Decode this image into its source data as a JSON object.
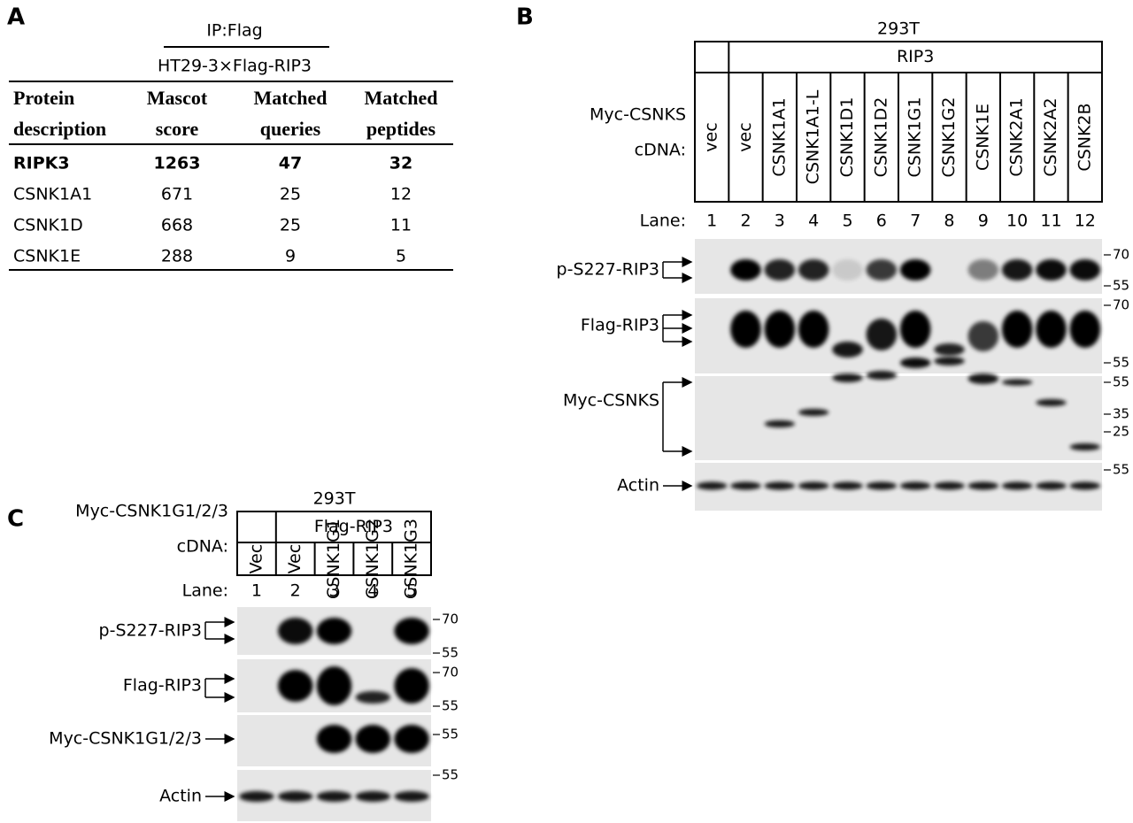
{
  "panelA": {
    "label": "A",
    "ip": "IP:Flag",
    "cells": "HT29-3×Flag-RIP3",
    "table": {
      "header": [
        [
          "Protein",
          "description"
        ],
        [
          "Mascot",
          "score"
        ],
        [
          "Matched",
          "queries"
        ],
        [
          "Matched",
          "peptides"
        ]
      ],
      "rows": [
        [
          "RIPK3",
          1263,
          47,
          32
        ],
        [
          "CSNK1A1",
          671,
          25,
          12
        ],
        [
          "CSNK1D",
          668,
          25,
          11
        ],
        [
          "CSNK1E",
          288,
          9,
          5
        ]
      ]
    }
  },
  "panelB": {
    "label": "B",
    "cell_line": "293T",
    "group": "RIP3",
    "row_label": [
      "Myc-CSNKS",
      "cDNA:"
    ],
    "lanes": [
      "vec",
      "vec",
      "CSNK1A1",
      "CSNK1A1-L",
      "CSNK1D1",
      "CSNK1D2",
      "CSNK1G1",
      "CSNK1G2",
      "CSNK1E",
      "CSNK2A1",
      "CSNK2A2",
      "CSNK2B"
    ],
    "lane_title": "Lane:",
    "lane_numbers": [
      1,
      2,
      3,
      4,
      5,
      6,
      7,
      8,
      9,
      10,
      11,
      12
    ],
    "blots": [
      {
        "name": "p-S227-RIP3",
        "markers": [
          70,
          55
        ]
      },
      {
        "name": "Flag-RIP3",
        "markers": [
          70,
          55
        ]
      },
      {
        "name": "Myc-CSNKS",
        "markers": [
          55,
          35,
          25
        ]
      },
      {
        "name": "Actin",
        "markers": [
          55
        ]
      }
    ]
  },
  "panelC": {
    "label": "C",
    "cell_line": "293T",
    "group": "Flag-RIP3",
    "row_label": [
      "Myc-CSNK1G1/2/3",
      "cDNA:"
    ],
    "lanes": [
      "Vec",
      "Vec",
      "CSNK1G1",
      "CSNK1G2",
      "CSNK1G3"
    ],
    "lane_title": "Lane:",
    "lane_numbers": [
      1,
      2,
      3,
      4,
      5
    ],
    "blots": [
      {
        "name": "p-S227-RIP3",
        "markers": [
          70,
          55
        ]
      },
      {
        "name": "Flag-RIP3",
        "markers": [
          70,
          55
        ]
      },
      {
        "name": "Myc-CSNK1G1/2/3",
        "markers": [
          55
        ]
      },
      {
        "name": "Actin",
        "markers": [
          55
        ]
      }
    ]
  }
}
